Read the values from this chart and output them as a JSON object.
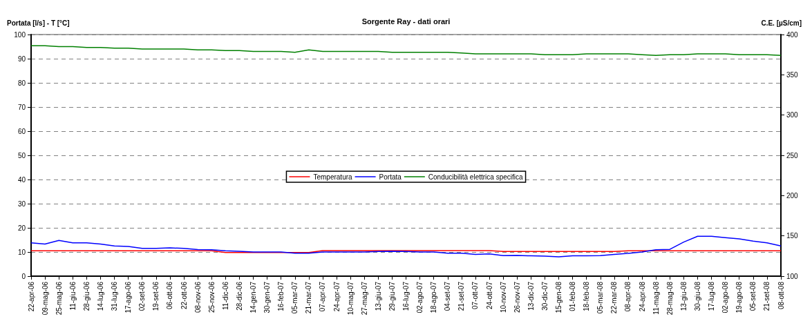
{
  "chart_data": {
    "type": "line",
    "title": "Sorgente Ray - dati orari",
    "ylabel": "Portata [l/s] - T [°C]",
    "y2label": "C.E. [µS/cm]",
    "categories": [
      "22-apr-06",
      "09-mag-06",
      "25-mag-06",
      "11-giu-06",
      "28-giu-06",
      "14-lug-06",
      "31-lug-06",
      "17-ago-06",
      "02-set-06",
      "19-set-06",
      "06-ott-06",
      "22-ott-06",
      "08-nov-06",
      "25-nov-06",
      "11-dic-06",
      "28-dic-06",
      "14-gen-07",
      "30-gen-07",
      "16-feb-07",
      "05-mar-07",
      "21-mar-07",
      "07-apr-07",
      "24-apr-07",
      "10-mag-07",
      "27-mag-07",
      "13-giu-07",
      "29-giu-07",
      "16-lug-07",
      "02-ago-07",
      "18-ago-07",
      "04-set-07",
      "21-set-07",
      "07-ott-07",
      "24-ott-07",
      "10-nov-07",
      "26-nov-07",
      "13-dic-07",
      "30-dic-07",
      "15-gen-08",
      "01-feb-08",
      "18-feb-08",
      "05-mar-08",
      "22-mar-08",
      "08-apr-08",
      "24-apr-08",
      "11-mag-08",
      "28-mag-08",
      "13-giu-08",
      "30-giu-08",
      "17-lug-08",
      "02-ago-08",
      "19-ago-08",
      "05-set-08",
      "21-set-08",
      "08-ott-08"
    ],
    "series": [
      {
        "name": "Temperatura",
        "color": "#ff0000",
        "values": [
          10.5,
          10.5,
          10.5,
          10.5,
          10.5,
          10.5,
          10.5,
          10.5,
          10.5,
          10.5,
          10.5,
          10.5,
          10.5,
          10.5,
          9.8,
          9.8,
          9.8,
          9.8,
          9.8,
          9.8,
          9.8,
          10.6,
          10.6,
          10.6,
          10.6,
          10.6,
          10.6,
          10.6,
          10.6,
          10.6,
          10.6,
          10.6,
          10.6,
          10.6,
          10.2,
          10.2,
          10.2,
          10.2,
          10.2,
          10.2,
          10.2,
          10.2,
          10.2,
          10.5,
          10.5,
          10.5,
          10.5,
          10.5,
          10.5,
          10.5,
          10.5,
          10.5,
          10.5,
          10.5,
          10.5
        ]
      },
      {
        "name": "Portata",
        "color": "#0000ff",
        "values": [
          13.8,
          13.3,
          14.8,
          13.8,
          13.8,
          13.3,
          12.5,
          12.3,
          11.5,
          11.5,
          11.7,
          11.5,
          11,
          10.9,
          10.5,
          10.3,
          10,
          10,
          10,
          9.5,
          9.5,
          10,
          10,
          10,
          10,
          10.2,
          10.3,
          10.2,
          10,
          10,
          9.5,
          9.5,
          9,
          9.2,
          8.5,
          8.6,
          8.4,
          8.3,
          8,
          8.4,
          8.4,
          8.5,
          9,
          9.4,
          10,
          10.9,
          11.1,
          14.1,
          16.5,
          16.5,
          15.9,
          15.4,
          14.5,
          13.8,
          12.5
        ]
      },
      {
        "name": "Conducibilità elettrica specifica",
        "color": "#008000",
        "axis": "y2",
        "values": [
          386,
          386,
          385,
          385,
          384,
          384,
          383,
          383,
          382,
          382,
          382,
          382,
          381,
          381,
          380,
          380,
          379,
          379,
          379,
          378,
          381,
          379,
          379,
          379,
          379,
          379,
          378,
          378,
          378,
          378,
          378,
          377,
          376,
          376,
          376,
          376,
          376,
          375,
          375,
          375,
          376,
          376,
          376,
          376,
          375,
          374,
          375,
          375,
          376,
          376,
          376,
          375,
          375,
          375,
          374
        ]
      }
    ],
    "ylim": [
      0,
      100
    ],
    "yticks": [
      0,
      10,
      20,
      30,
      40,
      50,
      60,
      70,
      80,
      90,
      100
    ],
    "y2lim": [
      100,
      400
    ],
    "y2ticks": [
      100,
      150,
      200,
      250,
      300,
      350,
      400
    ],
    "grid": "y",
    "legend": "center",
    "marker": "none",
    "line_style": "solid"
  }
}
